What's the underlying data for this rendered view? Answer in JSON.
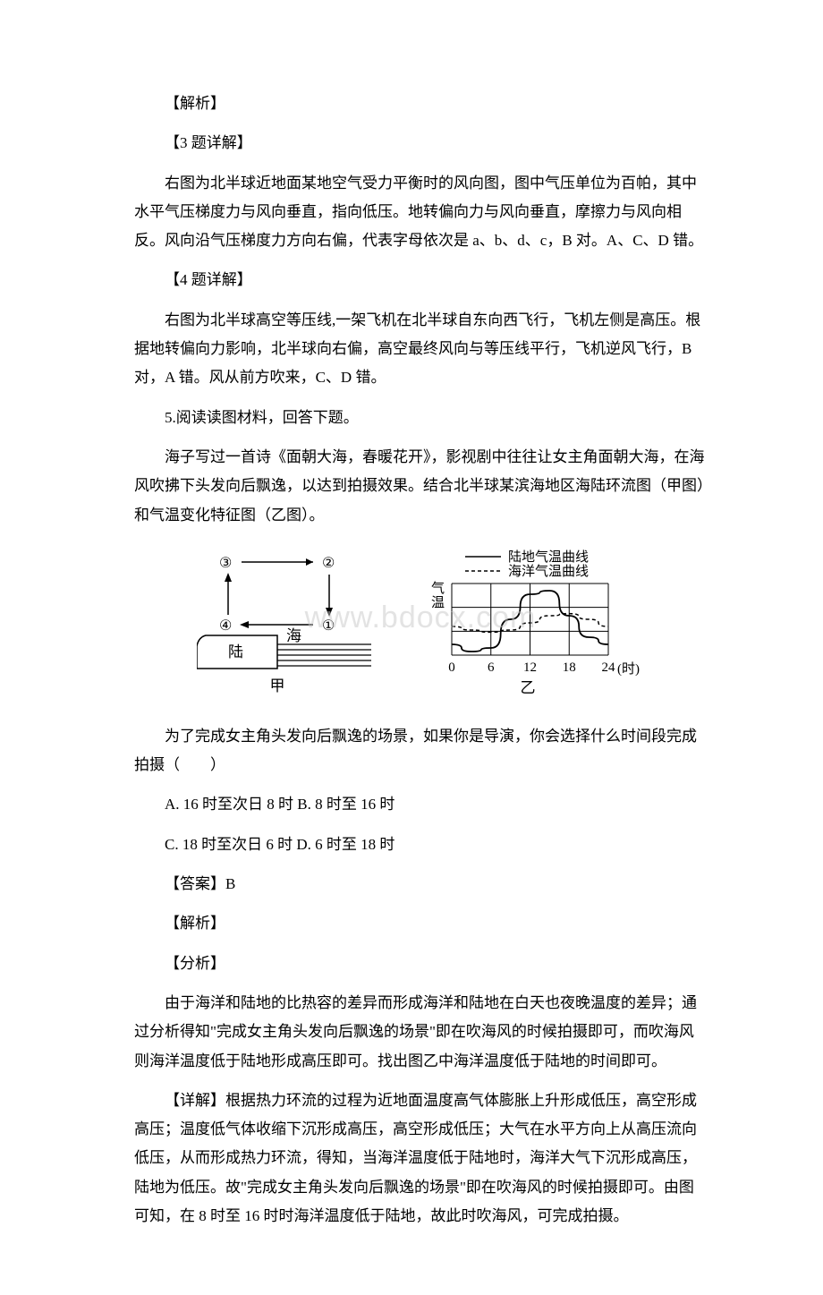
{
  "p1": "【解析】",
  "p2": "【3 题详解】",
  "p3": "右图为北半球近地面某地空气受力平衡时的风向图，图中气压单位为百帕，其中水平气压梯度力与风向垂直，指向低压。地转偏向力与风向垂直，摩擦力与风向相反。风向沿气压梯度力方向右偏，代表字母依次是 a、b、d、c，B 对。A、C、D 错。",
  "p4": "【4 题详解】",
  "p5": "右图为北半球高空等压线,一架飞机在北半球自东向西飞行，飞机左侧是高压。根据地转偏向力影响，北半球向右偏，高空最终风向与等压线平行，飞机逆风飞行，B 对，A 错。风从前方吹来，C、D 错。",
  "p6": "5.阅读读图材料，回答下题。",
  "p7": "海子写过一首诗《面朝大海，春暖花开》，影视剧中往往让女主角面朝大海，在海风吹拂下头发向后飘逸，以达到拍摄效果。结合北半球某滨海地区海陆环流图（甲图）和气温变化特征图（乙图）。",
  "p8": "为了完成女主角头发向后飘逸的场景，如果你是导演，你会选择什么时间段完成拍摄（　　）",
  "p9": "A. 16 时至次日 8 时 B. 8 时至 16 时",
  "p10": "C. 18 时至次日 6 时 D. 6 时至 18 时",
  "p11": "【答案】B",
  "p12": "【解析】",
  "p13": "【分析】",
  "p14": "由于海洋和陆地的比热容的差异而形成海洋和陆地在白天也夜晚温度的差异；通过分析得知\"完成女主角头发向后飘逸的场景\"即在吹海风的时候拍摄即可，而吹海风则海洋温度低于陆地形成高压即可。找出图乙中海洋温度低于陆地的时间即可。",
  "p15": "【详解】根据热力环流的过程为近地面温度高气体膨胀上升形成低压，高空形成高压；温度低气体收缩下沉形成高压，高空形成低压；大气在水平方向上从高压流向低压，从而形成热力环流，得知，当海洋温度低于陆地时，海洋大气下沉形成高压，陆地为低压。故\"完成女主角头发向后飘逸的场景\"即在吹海风的时候拍摄即可。由图可知，在 8 时至 16 时时海洋温度低于陆地，故此时吹海风，可完成拍摄。",
  "watermark": "www.bdocx.com",
  "diagram_jia": {
    "label_3": "③",
    "label_2": "②",
    "label_4": "④",
    "label_1": "①",
    "label_land": "陆",
    "label_sea": "海",
    "caption": "甲"
  },
  "diagram_yi": {
    "legend_land": "陆地气温曲线",
    "legend_sea": "海洋气温曲线",
    "ylabel": "气温",
    "xticks": [
      "0",
      "6",
      "12",
      "18",
      "24"
    ],
    "xunit": "(时)",
    "caption": "乙",
    "grid_color": "#000000",
    "land_curve": [
      {
        "x": 0,
        "y": 0.15
      },
      {
        "x": 3,
        "y": 0.05
      },
      {
        "x": 6,
        "y": 0.1
      },
      {
        "x": 9,
        "y": 0.5
      },
      {
        "x": 12,
        "y": 0.85
      },
      {
        "x": 15,
        "y": 0.9
      },
      {
        "x": 18,
        "y": 0.55
      },
      {
        "x": 21,
        "y": 0.25
      },
      {
        "x": 24,
        "y": 0.15
      }
    ],
    "sea_curve": [
      {
        "x": 0,
        "y": 0.4
      },
      {
        "x": 3,
        "y": 0.35
      },
      {
        "x": 6,
        "y": 0.32
      },
      {
        "x": 9,
        "y": 0.35
      },
      {
        "x": 12,
        "y": 0.45
      },
      {
        "x": 15,
        "y": 0.55
      },
      {
        "x": 18,
        "y": 0.58
      },
      {
        "x": 21,
        "y": 0.5
      },
      {
        "x": 24,
        "y": 0.4
      }
    ]
  }
}
